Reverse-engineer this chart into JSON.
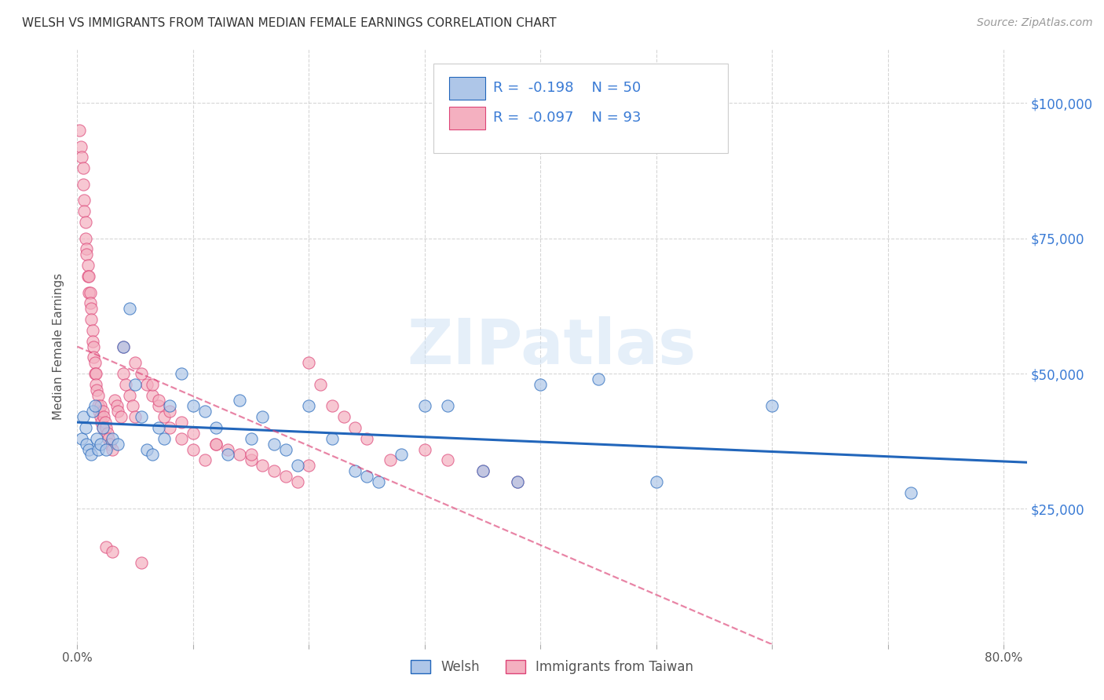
{
  "title": "WELSH VS IMMIGRANTS FROM TAIWAN MEDIAN FEMALE EARNINGS CORRELATION CHART",
  "source": "Source: ZipAtlas.com",
  "ylabel": "Median Female Earnings",
  "ytick_labels": [
    "$25,000",
    "$50,000",
    "$75,000",
    "$100,000"
  ],
  "ytick_values": [
    25000,
    50000,
    75000,
    100000
  ],
  "watermark": "ZIPatlas",
  "legend_entries": [
    {
      "label": "Welsh",
      "R": "-0.198",
      "N": "50",
      "color": "#aec6e8",
      "line_color": "#2266bb"
    },
    {
      "label": "Immigrants from Taiwan",
      "R": "-0.097",
      "N": "93",
      "color": "#f4b0c0",
      "line_color": "#dd4477"
    }
  ],
  "xlim": [
    0.0,
    0.82
  ],
  "ylim": [
    0,
    110000
  ],
  "background_color": "#ffffff",
  "grid_color": "#cccccc",
  "title_color": "#333333",
  "axis_label_color": "#555555",
  "right_ytick_color": "#3a7bd5",
  "legend_text_color": "#3a7bd5",
  "welsh_scatter_x": [
    0.004,
    0.005,
    0.007,
    0.008,
    0.01,
    0.012,
    0.013,
    0.015,
    0.017,
    0.018,
    0.02,
    0.022,
    0.025,
    0.03,
    0.035,
    0.04,
    0.045,
    0.05,
    0.055,
    0.06,
    0.065,
    0.07,
    0.075,
    0.08,
    0.09,
    0.1,
    0.11,
    0.12,
    0.13,
    0.14,
    0.15,
    0.16,
    0.17,
    0.18,
    0.19,
    0.2,
    0.22,
    0.24,
    0.25,
    0.26,
    0.28,
    0.3,
    0.32,
    0.35,
    0.38,
    0.4,
    0.45,
    0.5,
    0.6,
    0.72
  ],
  "welsh_scatter_y": [
    38000,
    42000,
    40000,
    37000,
    36000,
    35000,
    43000,
    44000,
    38000,
    36000,
    37000,
    40000,
    36000,
    38000,
    37000,
    55000,
    62000,
    48000,
    42000,
    36000,
    35000,
    40000,
    38000,
    44000,
    50000,
    44000,
    43000,
    40000,
    35000,
    45000,
    38000,
    42000,
    37000,
    36000,
    33000,
    44000,
    38000,
    32000,
    31000,
    30000,
    35000,
    44000,
    44000,
    32000,
    30000,
    48000,
    49000,
    30000,
    44000,
    28000
  ],
  "taiwan_scatter_x": [
    0.002,
    0.003,
    0.004,
    0.005,
    0.005,
    0.006,
    0.006,
    0.007,
    0.007,
    0.008,
    0.008,
    0.009,
    0.009,
    0.01,
    0.01,
    0.011,
    0.011,
    0.012,
    0.012,
    0.013,
    0.013,
    0.014,
    0.014,
    0.015,
    0.015,
    0.016,
    0.016,
    0.017,
    0.018,
    0.018,
    0.019,
    0.02,
    0.02,
    0.021,
    0.022,
    0.022,
    0.023,
    0.024,
    0.025,
    0.026,
    0.027,
    0.028,
    0.03,
    0.032,
    0.034,
    0.035,
    0.038,
    0.04,
    0.042,
    0.045,
    0.048,
    0.05,
    0.055,
    0.06,
    0.065,
    0.07,
    0.075,
    0.08,
    0.09,
    0.1,
    0.11,
    0.12,
    0.13,
    0.14,
    0.15,
    0.16,
    0.17,
    0.18,
    0.19,
    0.2,
    0.21,
    0.22,
    0.23,
    0.24,
    0.25,
    0.27,
    0.3,
    0.32,
    0.35,
    0.38,
    0.04,
    0.05,
    0.065,
    0.07,
    0.08,
    0.09,
    0.1,
    0.12,
    0.15,
    0.2,
    0.025,
    0.03,
    0.055
  ],
  "taiwan_scatter_y": [
    95000,
    92000,
    90000,
    88000,
    85000,
    82000,
    80000,
    78000,
    75000,
    73000,
    72000,
    70000,
    68000,
    68000,
    65000,
    65000,
    63000,
    62000,
    60000,
    58000,
    56000,
    55000,
    53000,
    52000,
    50000,
    50000,
    48000,
    47000,
    46000,
    44000,
    43000,
    42000,
    44000,
    41000,
    40000,
    43000,
    42000,
    41000,
    40000,
    39000,
    38000,
    37000,
    36000,
    45000,
    44000,
    43000,
    42000,
    50000,
    48000,
    46000,
    44000,
    42000,
    50000,
    48000,
    46000,
    44000,
    42000,
    40000,
    38000,
    36000,
    34000,
    37000,
    36000,
    35000,
    34000,
    33000,
    32000,
    31000,
    30000,
    52000,
    48000,
    44000,
    42000,
    40000,
    38000,
    34000,
    36000,
    34000,
    32000,
    30000,
    55000,
    52000,
    48000,
    45000,
    43000,
    41000,
    39000,
    37000,
    35000,
    33000,
    18000,
    17000,
    15000
  ]
}
